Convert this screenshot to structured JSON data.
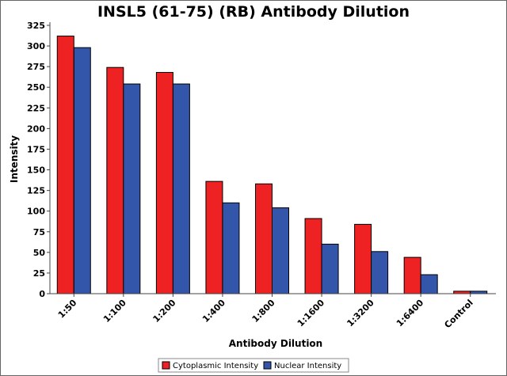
{
  "chart_data": {
    "type": "bar",
    "title": "INSL5 (61-75) (RB) Antibody Dilution",
    "xlabel": "Antibody Dilution",
    "ylabel": "Intensity",
    "ylim": [
      0,
      325
    ],
    "yticks": [
      0,
      25,
      50,
      75,
      100,
      125,
      150,
      175,
      200,
      225,
      250,
      275,
      300,
      325
    ],
    "categories": [
      "1:50",
      "1:100",
      "1:200",
      "1:400",
      "1:800",
      "1:1600",
      "1:3200",
      "1:6400",
      "Control"
    ],
    "series": [
      {
        "name": "Cytoplasmic Intensity",
        "color": "#ee2222",
        "values": [
          312,
          274,
          268,
          136,
          133,
          91,
          84,
          44,
          3
        ]
      },
      {
        "name": "Nuclear Intensity",
        "color": "#3355aa",
        "values": [
          298,
          254,
          254,
          110,
          104,
          60,
          51,
          23,
          3
        ]
      }
    ],
    "grid": false,
    "legend": "bottom-center"
  }
}
